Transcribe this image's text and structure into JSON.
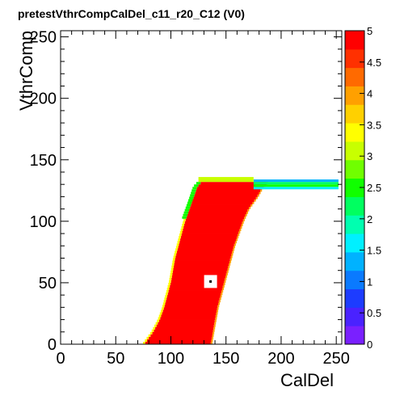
{
  "chart_data": {
    "type": "heatmap",
    "title": "pretestVthrCompCalDel_c11_r20_C12 (V0)",
    "xlabel": "CalDel",
    "ylabel": "VthrComp",
    "xlim": [
      0,
      255
    ],
    "ylim": [
      0,
      255
    ],
    "zlim": [
      0,
      5
    ],
    "x_ticks": [
      0,
      50,
      100,
      150,
      200,
      250
    ],
    "y_ticks": [
      0,
      50,
      100,
      150,
      200,
      250
    ],
    "z_ticks": [
      0,
      0.5,
      1,
      1.5,
      2,
      2.5,
      3,
      3.5,
      4,
      4.5,
      5
    ],
    "colorbar": "right",
    "palette": [
      "#7a20ff",
      "#4a22ff",
      "#1d3cff",
      "#0a7aff",
      "#00b2ff",
      "#00f0ff",
      "#00ffb0",
      "#00ff60",
      "#10ff00",
      "#70ff00",
      "#c8ff00",
      "#ffff00",
      "#ffd000",
      "#ffa000",
      "#ff6a00",
      "#ff3000",
      "#ff0000"
    ],
    "region": {
      "description_values": "Efficiency map: filled band of value 5 between left and right edges per VthrComp row, with a mask pixel at the calibration point",
      "rows": [
        {
          "y": 0,
          "left": 76,
          "right": 136
        },
        {
          "y": 10,
          "left": 84,
          "right": 138
        },
        {
          "y": 20,
          "left": 90,
          "right": 140
        },
        {
          "y": 30,
          "left": 94,
          "right": 142
        },
        {
          "y": 40,
          "left": 97,
          "right": 145
        },
        {
          "y": 50,
          "left": 100,
          "right": 148
        },
        {
          "y": 60,
          "left": 102,
          "right": 151
        },
        {
          "y": 70,
          "left": 104,
          "right": 154
        },
        {
          "y": 80,
          "left": 107,
          "right": 157
        },
        {
          "y": 90,
          "left": 110,
          "right": 161
        },
        {
          "y": 100,
          "left": 113,
          "right": 165
        },
        {
          "y": 110,
          "left": 117,
          "right": 170
        },
        {
          "y": 120,
          "left": 121,
          "right": 178
        },
        {
          "y": 128,
          "left": 124,
          "right": 183
        },
        {
          "y": 132,
          "left": 128,
          "right": 188
        }
      ],
      "edge_fringe_tail": {
        "y_min": 126,
        "y_max": 134,
        "x_min": 175,
        "x_max": 252
      },
      "mask_point": {
        "x": 136,
        "y": 51
      }
    }
  }
}
